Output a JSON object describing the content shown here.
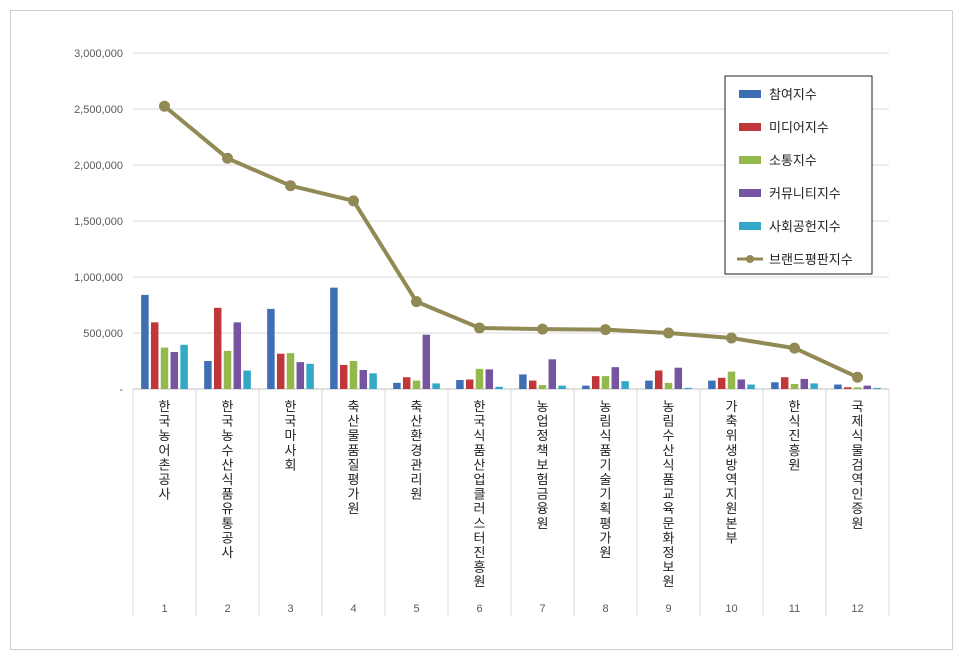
{
  "chart_data": {
    "type": "bar",
    "title": "",
    "xlabel": "",
    "ylabel": "",
    "ylim": [
      0,
      3000000
    ],
    "yticks": [
      "-",
      "500,000",
      "1,000,000",
      "1,500,000",
      "2,000,000",
      "2,500,000",
      "3,000,000"
    ],
    "grid": true,
    "legend_position": "top-right",
    "categories": [
      "1",
      "2",
      "3",
      "4",
      "5",
      "6",
      "7",
      "8",
      "9",
      "10",
      "11",
      "12"
    ],
    "category_names": [
      "한국농어촌공사",
      "한국농수산식품유통공사",
      "한국마사회",
      "축산물품질평가원",
      "축산환경관리원",
      "한국식품산업클러스터진흥원",
      "농업정책보험금융원",
      "농림식품기술기획평가원",
      "농림수산식품교육문화정보원",
      "가축위생방역지원본부",
      "한식진흥원",
      "국제식물검역인증원"
    ],
    "series": [
      {
        "name": "참여지수",
        "kind": "bar",
        "color": "#3e6fb5",
        "values": [
          840000,
          250000,
          715000,
          905000,
          55000,
          80000,
          130000,
          30000,
          75000,
          75000,
          60000,
          40000
        ]
      },
      {
        "name": "미디어지수",
        "kind": "bar",
        "color": "#c0373a",
        "values": [
          595000,
          725000,
          315000,
          215000,
          105000,
          85000,
          75000,
          115000,
          165000,
          100000,
          105000,
          15000
        ]
      },
      {
        "name": "소통지수",
        "kind": "bar",
        "color": "#93b94d",
        "values": [
          370000,
          340000,
          320000,
          250000,
          75000,
          180000,
          35000,
          115000,
          55000,
          155000,
          45000,
          15000
        ]
      },
      {
        "name": "커뮤니티지수",
        "kind": "bar",
        "color": "#7654a0",
        "values": [
          330000,
          595000,
          240000,
          170000,
          485000,
          175000,
          265000,
          195000,
          190000,
          85000,
          90000,
          30000
        ]
      },
      {
        "name": "사회공헌지수",
        "kind": "bar",
        "color": "#34a9c7",
        "values": [
          395000,
          165000,
          225000,
          140000,
          50000,
          20000,
          30000,
          70000,
          10000,
          40000,
          50000,
          10000
        ]
      },
      {
        "name": "브랜드평판지수",
        "kind": "line",
        "color": "#928a55",
        "values": [
          2525000,
          2060000,
          1815000,
          1680000,
          780000,
          545000,
          535000,
          530000,
          500000,
          455000,
          365000,
          105000
        ]
      }
    ]
  }
}
